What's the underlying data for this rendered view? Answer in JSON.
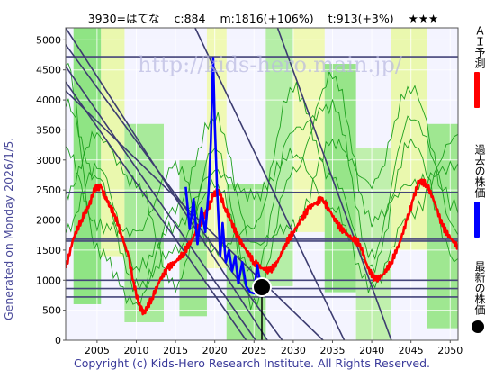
{
  "header": {
    "code_name": "3930=はてな",
    "current": "c:884",
    "mean": "m:1816(+106%)",
    "target": "t:913(+3%)",
    "stars": "★★★"
  },
  "side_label": "Generated on Monday 2026/1/5.",
  "footer": "Copyright (c) Kids-Hero Research Institute. All Rights Reserved.",
  "watermark": "http://kids-hero.main.jp/",
  "legend": [
    {
      "label": "ＡＩ予測",
      "color": "#ff0000"
    },
    {
      "label": "過去の株価",
      "color": "#0000ff"
    },
    {
      "label": "最新の株価",
      "color": "#000000"
    }
  ],
  "chart_data": {
    "type": "line",
    "xlim": [
      2001,
      2051
    ],
    "ylim": [
      0,
      5200
    ],
    "x_ticks": [
      2005,
      2010,
      2015,
      2020,
      2025,
      2030,
      2035,
      2040,
      2045,
      2050
    ],
    "y_ticks": [
      0,
      500,
      1000,
      1500,
      2000,
      2500,
      3000,
      3500,
      4000,
      4500,
      5000
    ],
    "hlines": [
      4720,
      2460,
      1680,
      1650,
      1000,
      860,
      720
    ],
    "trend_lines": [
      {
        "x": [
          2001,
          2026.7
        ],
        "y": [
          5200,
          0
        ]
      },
      {
        "x": [
          2001,
          2028.6
        ],
        "y": [
          4920,
          0
        ]
      },
      {
        "x": [
          2001,
          2025.2
        ],
        "y": [
          4560,
          0
        ]
      },
      {
        "x": [
          2001,
          2024.0
        ],
        "y": [
          4300,
          0
        ]
      },
      {
        "x": [
          2001,
          2033.8
        ],
        "y": [
          4150,
          0
        ]
      },
      {
        "x": [
          2017.5,
          2036.5
        ],
        "y": [
          5200,
          0
        ]
      },
      {
        "x": [
          2028.0,
          2042.5
        ],
        "y": [
          5200,
          0
        ]
      }
    ],
    "ai_forecast": {
      "name": "ＡＩ予測",
      "color": "#ff0000",
      "x": [
        2001,
        2002,
        2003,
        2004,
        2004.8,
        2005.5,
        2006.3,
        2007.2,
        2008,
        2009,
        2009.6,
        2010.3,
        2011,
        2012,
        2013,
        2014,
        2015,
        2016,
        2017,
        2018,
        2019,
        2019.8,
        2020.5,
        2021.3,
        2022,
        2023,
        2024,
        2025,
        2026,
        2027,
        2028,
        2029,
        2030,
        2031,
        2032,
        2033,
        2033.6,
        2034.5,
        2035.5,
        2036.5,
        2037.5,
        2038.5,
        2039.5,
        2040.5,
        2041.5,
        2042.5,
        2043.5,
        2044.5,
        2045.3,
        2046,
        2047,
        2048,
        2049,
        2050,
        2051
      ],
      "y": [
        1200,
        1700,
        2000,
        2250,
        2550,
        2550,
        2300,
        2100,
        1800,
        1400,
        1000,
        600,
        450,
        700,
        1000,
        1200,
        1300,
        1450,
        1650,
        1900,
        2150,
        2400,
        2500,
        2200,
        2000,
        1700,
        1500,
        1300,
        1200,
        1150,
        1300,
        1600,
        1800,
        2000,
        2200,
        2300,
        2350,
        2200,
        1950,
        1800,
        1700,
        1600,
        1200,
        1000,
        1100,
        1300,
        1600,
        2000,
        2350,
        2650,
        2600,
        2300,
        1900,
        1700,
        1550
      ]
    },
    "past_price": {
      "name": "過去の株価",
      "color": "#0000ff",
      "x": [
        2016.3,
        2016.8,
        2017.3,
        2017.8,
        2018.3,
        2018.8,
        2019.2,
        2019.5,
        2019.8,
        2020.0,
        2020.3,
        2020.7,
        2021.0,
        2021.4,
        2021.8,
        2022.2,
        2022.6,
        2023.0,
        2023.5,
        2024.0,
        2024.5,
        2025.0,
        2025.4,
        2025.8,
        2026.0
      ],
      "y": [
        2550,
        1850,
        2350,
        1600,
        2200,
        1800,
        2450,
        3300,
        4700,
        3600,
        2500,
        1400,
        1950,
        1300,
        1500,
        1150,
        1400,
        950,
        1300,
        900,
        800,
        780,
        1250,
        950,
        884
      ]
    },
    "latest": {
      "name": "最新の株価",
      "x": 2026.0,
      "y": 884
    },
    "bands": [
      {
        "x0": 2002.0,
        "x1": 2005.5,
        "y0": 600,
        "y1": 5200,
        "color": "#7de06e"
      },
      {
        "x0": 2005.5,
        "x1": 2008.5,
        "y0": 1400,
        "y1": 5200,
        "color": "#e8f8a0"
      },
      {
        "x0": 2008.5,
        "x1": 2013.5,
        "y0": 300,
        "y1": 3600,
        "color": "#9ae889"
      },
      {
        "x0": 2015.5,
        "x1": 2019.0,
        "y0": 400,
        "y1": 3000,
        "color": "#8fe47e"
      },
      {
        "x0": 2019.0,
        "x1": 2021.5,
        "y0": 1200,
        "y1": 5200,
        "color": "#eef9a8"
      },
      {
        "x0": 2021.5,
        "x1": 2026.5,
        "y0": 0,
        "y1": 2600,
        "color": "#8fe47e"
      },
      {
        "x0": 2026.5,
        "x1": 2030.0,
        "y0": 900,
        "y1": 5200,
        "color": "#a9ec98"
      },
      {
        "x0": 2030.0,
        "x1": 2034.0,
        "y0": 1800,
        "y1": 5200,
        "color": "#eef9a8"
      },
      {
        "x0": 2034.0,
        "x1": 2038.0,
        "y0": 800,
        "y1": 4600,
        "color": "#86e274"
      },
      {
        "x0": 2038.0,
        "x1": 2042.5,
        "y0": 0,
        "y1": 3200,
        "color": "#b6ef9f"
      },
      {
        "x0": 2042.5,
        "x1": 2047.0,
        "y0": 1500,
        "y1": 5200,
        "color": "#e8f8a0"
      },
      {
        "x0": 2047.0,
        "x1": 2051.0,
        "y0": 200,
        "y1": 3600,
        "color": "#8fe47e"
      }
    ],
    "green_lines": [
      {
        "x": [
          2001,
          2005,
          2010,
          2015,
          2020,
          2025,
          2030,
          2035,
          2040,
          2045,
          2051
        ],
        "y": [
          4000,
          2700,
          900,
          1500,
          2600,
          1100,
          3500,
          3900,
          1400,
          3700,
          2200
        ]
      },
      {
        "x": [
          2001,
          2005,
          2010,
          2015,
          2020,
          2025,
          2030,
          2035,
          2040,
          2045,
          2051
        ],
        "y": [
          3200,
          1900,
          1800,
          2900,
          1500,
          1900,
          4200,
          2700,
          1200,
          3300,
          1300
        ]
      },
      {
        "x": [
          2001,
          2005,
          2010,
          2015,
          2020,
          2025,
          2030,
          2035,
          2040,
          2045,
          2051
        ],
        "y": [
          2400,
          3400,
          2600,
          900,
          3200,
          600,
          2800,
          4400,
          2000,
          2600,
          2900
        ]
      },
      {
        "x": [
          2001,
          2005,
          2010,
          2015,
          2020,
          2025,
          2030,
          2035,
          2040,
          2045,
          2051
        ],
        "y": [
          4600,
          1500,
          600,
          2200,
          3700,
          1600,
          1900,
          3300,
          2600,
          4200,
          1800
        ]
      },
      {
        "x": [
          2001,
          2005,
          2010,
          2015,
          2020,
          2025,
          2030,
          2035,
          2040,
          2045,
          2051
        ],
        "y": [
          1800,
          2900,
          1200,
          1900,
          2800,
          2400,
          3100,
          2200,
          900,
          2100,
          3400
        ]
      }
    ]
  }
}
